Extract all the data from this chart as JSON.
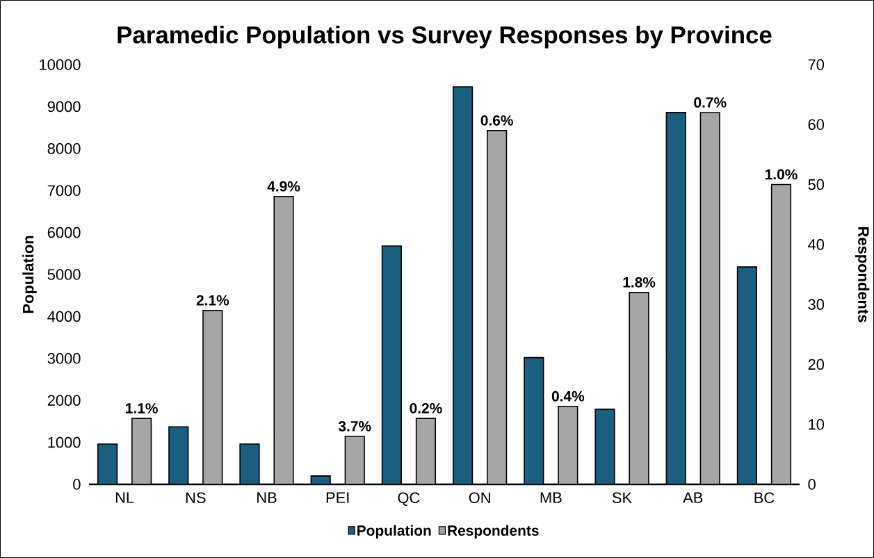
{
  "chart_data": {
    "type": "bar",
    "title": "Paramedic Population vs Survey Responses by Province",
    "ylabel": "Population",
    "y2label": "Respondents",
    "categories": [
      "NL",
      "NS",
      "NB",
      "PEI",
      "QC",
      "ON",
      "MB",
      "SK",
      "AB",
      "BC"
    ],
    "series": [
      {
        "name": "Population",
        "color": "#1a5e80",
        "values": [
          960,
          1370,
          960,
          200,
          5680,
          9470,
          3020,
          1790,
          8860,
          5180
        ]
      },
      {
        "name": "Respondents",
        "color": "#a6a6a6",
        "axis": "y2",
        "values": [
          11,
          29,
          48,
          8,
          11,
          59,
          13,
          32,
          62,
          50
        ]
      }
    ],
    "annotations": [
      "1.1%",
      "2.1%",
      "4.9%",
      "3.7%",
      "0.2%",
      "0.6%",
      "0.4%",
      "1.8%",
      "0.7%",
      "1.0%"
    ],
    "ylim": [
      0,
      10000
    ],
    "yticks": [
      0,
      1000,
      2000,
      3000,
      4000,
      5000,
      6000,
      7000,
      8000,
      9000,
      10000
    ],
    "y2lim": [
      0,
      70
    ],
    "y2ticks": [
      0,
      10,
      20,
      30,
      40,
      50,
      60,
      70
    ],
    "legend": "bottom"
  }
}
